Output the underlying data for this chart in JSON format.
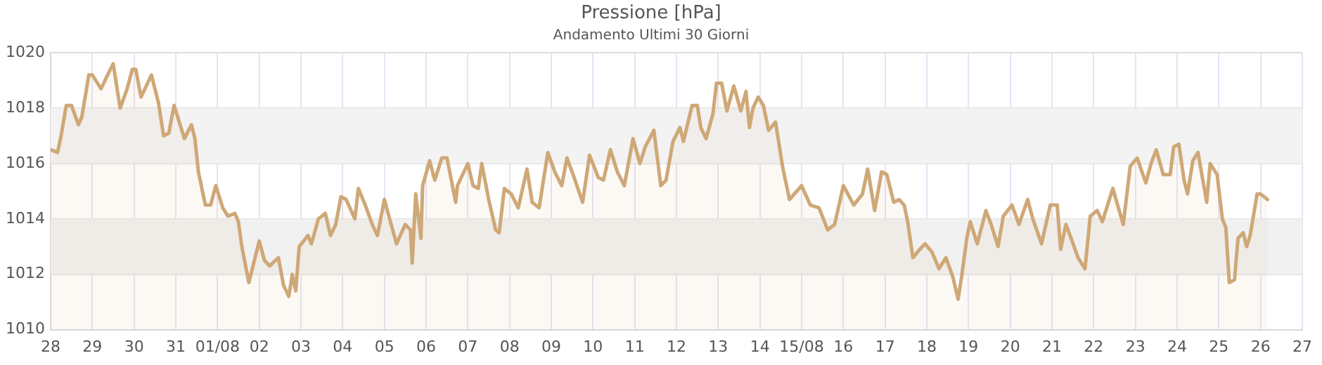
{
  "chart_data": {
    "type": "area",
    "title": "Pressione [hPa]",
    "subtitle": "Andamento Ultimi 30 Giorni",
    "xlim": [
      "--07-28",
      "--08-27"
    ],
    "ylim": [
      1010,
      1020
    ],
    "xticks": [
      {
        "value": "--07-28",
        "label": "28"
      },
      {
        "value": "--07-29",
        "label": "29"
      },
      {
        "value": "--07-30",
        "label": "30"
      },
      {
        "value": "--07-31",
        "label": "31"
      },
      {
        "value": "--08-01",
        "label": "01/08"
      },
      {
        "value": "--08-02",
        "label": "02"
      },
      {
        "value": "--08-03",
        "label": "03"
      },
      {
        "value": "--08-04",
        "label": "04"
      },
      {
        "value": "--08-05",
        "label": "05"
      },
      {
        "value": "--08-06",
        "label": "06"
      },
      {
        "value": "--08-07",
        "label": "07"
      },
      {
        "value": "--08-08",
        "label": "08"
      },
      {
        "value": "--08-09",
        "label": "09"
      },
      {
        "value": "--08-10",
        "label": "10"
      },
      {
        "value": "--08-11",
        "label": "11"
      },
      {
        "value": "--08-12",
        "label": "12"
      },
      {
        "value": "--08-13",
        "label": "13"
      },
      {
        "value": "--08-14",
        "label": "14"
      },
      {
        "value": "--08-15",
        "label": "15/08"
      },
      {
        "value": "--08-16",
        "label": "16"
      },
      {
        "value": "--08-17",
        "label": "17"
      },
      {
        "value": "--08-18",
        "label": "18"
      },
      {
        "value": "--08-19",
        "label": "19"
      },
      {
        "value": "--08-20",
        "label": "20"
      },
      {
        "value": "--08-21",
        "label": "21"
      },
      {
        "value": "--08-22",
        "label": "22"
      },
      {
        "value": "--08-23",
        "label": "23"
      },
      {
        "value": "--08-24",
        "label": "24"
      },
      {
        "value": "--08-25",
        "label": "25"
      },
      {
        "value": "--08-26",
        "label": "26"
      },
      {
        "value": "--08-27",
        "label": "27"
      }
    ],
    "yticks": [
      1010,
      1012,
      1014,
      1016,
      1018,
      1020
    ],
    "grid": true,
    "legend": false,
    "marker": "none",
    "line_style": "solid",
    "bands": [
      {
        "axis": "y",
        "from": 1012,
        "to": 1014,
        "color": "#f2f1f1"
      },
      {
        "axis": "y",
        "from": 1016,
        "to": 1018,
        "color": "#f3f3f4"
      }
    ],
    "series": [
      {
        "color": "#cfa877",
        "x": [
          "--07-28T00:00",
          "--07-28T04:00",
          "--07-28T06:00",
          "--07-28T09:00",
          "--07-28T12:00",
          "--07-28T16:00",
          "--07-28T18:00",
          "--07-28T22:00",
          "--07-29T00:00",
          "--07-29T05:00",
          "--07-29T08:00",
          "--07-29T12:00",
          "--07-29T16:00",
          "--07-29T20:00",
          "--07-29T23:00",
          "--07-30T01:00",
          "--07-30T04:00",
          "--07-30T10:00",
          "--07-30T14:00",
          "--07-30T17:00",
          "--07-30T20:00",
          "--07-30T23:00",
          "--07-31T05:00",
          "--07-31T09:00",
          "--07-31T11:00",
          "--07-31T13:00",
          "--07-31T17:00",
          "--07-31T20:00",
          "--07-31T23:00",
          "--08-01T03:00",
          "--08-01T06:00",
          "--08-01T10:00",
          "--08-01T12:00",
          "--08-01T14:00",
          "--08-01T18:00",
          "--08-02T00:00",
          "--08-02T03:00",
          "--08-02T06:00",
          "--08-02T11:00",
          "--08-02T14:00",
          "--08-02T17:00",
          "--08-02T19:00",
          "--08-02T21:00",
          "--08-02T23:00",
          "--08-03T04:00",
          "--08-03T06:00",
          "--08-03T10:00",
          "--08-03T14:00",
          "--08-03T17:00",
          "--08-03T20:00",
          "--08-03T23:00",
          "--08-04T02:00",
          "--08-04T07:00",
          "--08-04T09:00",
          "--08-04T13:00",
          "--08-04T17:00",
          "--08-04T20:00",
          "--08-05T00:00",
          "--08-05T03:00",
          "--08-05T07:00",
          "--08-05T12:00",
          "--08-05T15:00",
          "--08-05T16:00",
          "--08-05T18:00",
          "--08-05T21:00",
          "--08-05T22:00",
          "--08-06T02:00",
          "--08-06T05:00",
          "--08-06T09:00",
          "--08-06T12:00",
          "--08-06T17:00",
          "--08-06T18:00",
          "--08-06T21:00",
          "--08-07T00:00",
          "--08-07T03:00",
          "--08-07T06:00",
          "--08-07T08:00",
          "--08-07T12:00",
          "--08-07T16:00",
          "--08-07T18:00",
          "--08-07T21:00",
          "--08-08T01:00",
          "--08-08T05:00",
          "--08-08T10:00",
          "--08-08T13:00",
          "--08-08T17:00",
          "--08-08T22:00",
          "--08-09T02:00",
          "--08-09T06:00",
          "--08-09T09:00",
          "--08-09T12:00",
          "--08-09T18:00",
          "--08-09T22:00",
          "--08-10T03:00",
          "--08-10T06:00",
          "--08-10T10:00",
          "--08-10T14:00",
          "--08-10T18:00",
          "--08-10T23:00",
          "--08-11T03:00",
          "--08-11T06:00",
          "--08-11T11:00",
          "--08-11T15:00",
          "--08-11T18:00",
          "--08-11T22:00",
          "--08-12T02:00",
          "--08-12T04:00",
          "--08-12T09:00",
          "--08-12T12:00",
          "--08-12T14:00",
          "--08-12T17:00",
          "--08-12T21:00",
          "--08-12T23:00",
          "--08-13T02:00",
          "--08-13T05:00",
          "--08-13T09:00",
          "--08-13T13:00",
          "--08-13T16:00",
          "--08-13T18:00",
          "--08-13T20:00",
          "--08-13T23:00",
          "--08-14T02:00",
          "--08-14T05:00",
          "--08-14T09:00",
          "--08-14T13:00",
          "--08-14T17:00",
          "--08-15T00:00",
          "--08-15T05:00",
          "--08-15T10:00",
          "--08-15T15:00",
          "--08-15T19:00",
          "--08-16T00:00",
          "--08-16T06:00",
          "--08-16T11:00",
          "--08-16T14:00",
          "--08-16T18:00",
          "--08-16T22:00",
          "--08-17T01:00",
          "--08-17T05:00",
          "--08-17T08:00",
          "--08-17T11:00",
          "--08-17T13:00",
          "--08-17T16:00",
          "--08-17T20:00",
          "--08-17T23:00",
          "--08-18T03:00",
          "--08-18T07:00",
          "--08-18T11:00",
          "--08-18T15:00",
          "--08-18T18:00",
          "--08-18T20:00",
          "--08-18T23:00",
          "--08-19T01:00",
          "--08-19T05:00",
          "--08-19T10:00",
          "--08-19T13:00",
          "--08-19T17:00",
          "--08-19T20:00",
          "--08-20T01:00",
          "--08-20T05:00",
          "--08-20T10:00",
          "--08-20T13:00",
          "--08-20T18:00",
          "--08-20T23:00",
          "--08-21T03:00",
          "--08-21T05:00",
          "--08-21T08:00",
          "--08-21T11:00",
          "--08-21T15:00",
          "--08-21T19:00",
          "--08-21T22:00",
          "--08-22T02:00",
          "--08-22T05:00",
          "--08-22T11:00",
          "--08-22T17:00",
          "--08-22T21:00",
          "--08-23T01:00",
          "--08-23T06:00",
          "--08-23T09:00",
          "--08-23T12:00",
          "--08-23T16:00",
          "--08-23T20:00",
          "--08-23T22:00",
          "--08-24T01:00",
          "--08-24T04:00",
          "--08-24T06:00",
          "--08-24T09:00",
          "--08-24T12:00",
          "--08-24T17:00",
          "--08-24T19:00",
          "--08-24T23:00",
          "--08-25T02:00",
          "--08-25T04:00",
          "--08-25T06:00",
          "--08-25T09:00",
          "--08-25T11:00",
          "--08-25T14:00",
          "--08-25T16:00",
          "--08-25T18:00",
          "--08-25T22:00",
          "--08-26T00:00",
          "--08-26T04:00"
        ],
        "values": [
          1016.5,
          1016.4,
          1017.0,
          1018.1,
          1018.1,
          1017.4,
          1017.7,
          1019.2,
          1019.2,
          1018.7,
          1019.1,
          1019.6,
          1018.0,
          1018.7,
          1019.4,
          1019.4,
          1018.4,
          1019.2,
          1018.2,
          1017.0,
          1017.1,
          1018.1,
          1016.9,
          1017.4,
          1016.9,
          1015.7,
          1014.5,
          1014.5,
          1015.2,
          1014.4,
          1014.1,
          1014.2,
          1013.9,
          1013.0,
          1011.7,
          1013.2,
          1012.5,
          1012.3,
          1012.6,
          1011.6,
          1011.2,
          1012.0,
          1011.4,
          1013.0,
          1013.4,
          1013.1,
          1014.0,
          1014.2,
          1013.4,
          1013.8,
          1014.8,
          1014.7,
          1014.0,
          1015.1,
          1014.5,
          1013.8,
          1013.4,
          1014.7,
          1014.0,
          1013.1,
          1013.8,
          1013.6,
          1012.4,
          1014.9,
          1013.3,
          1015.2,
          1016.1,
          1015.4,
          1016.2,
          1016.2,
          1014.6,
          1015.2,
          1015.6,
          1016.0,
          1015.2,
          1015.1,
          1016.0,
          1014.7,
          1013.6,
          1013.5,
          1015.1,
          1014.9,
          1014.4,
          1015.8,
          1014.6,
          1014.4,
          1016.4,
          1015.7,
          1015.2,
          1016.2,
          1015.7,
          1014.6,
          1016.3,
          1015.5,
          1015.4,
          1016.5,
          1015.7,
          1015.2,
          1016.9,
          1016.0,
          1016.6,
          1017.2,
          1015.2,
          1015.4,
          1016.8,
          1017.3,
          1016.8,
          1018.1,
          1018.1,
          1017.3,
          1016.9,
          1017.8,
          1018.9,
          1018.9,
          1017.9,
          1018.8,
          1017.9,
          1018.6,
          1017.3,
          1018.0,
          1018.4,
          1018.1,
          1017.2,
          1017.5,
          1015.9,
          1014.7,
          1015.2,
          1014.5,
          1014.4,
          1013.6,
          1013.8,
          1015.2,
          1014.5,
          1014.9,
          1015.8,
          1014.3,
          1015.7,
          1015.6,
          1014.6,
          1014.7,
          1014.5,
          1013.9,
          1012.6,
          1012.9,
          1013.1,
          1012.8,
          1012.2,
          1012.6,
          1011.9,
          1011.1,
          1011.9,
          1013.3,
          1013.9,
          1013.1,
          1014.3,
          1013.8,
          1013.0,
          1014.1,
          1014.5,
          1013.8,
          1014.7,
          1014.0,
          1013.1,
          1014.5,
          1014.5,
          1012.9,
          1013.8,
          1013.3,
          1012.6,
          1012.2,
          1014.1,
          1014.3,
          1013.9,
          1015.1,
          1013.8,
          1015.9,
          1016.2,
          1015.3,
          1016.0,
          1016.5,
          1015.6,
          1015.6,
          1016.6,
          1016.7,
          1015.4,
          1014.9,
          1016.1,
          1016.4,
          1014.6,
          1016.0,
          1015.6,
          1014.0,
          1013.7,
          1011.7,
          1011.8,
          1013.3,
          1013.5,
          1013.0,
          1013.4,
          1014.9,
          1014.9,
          1014.7
        ]
      }
    ]
  }
}
